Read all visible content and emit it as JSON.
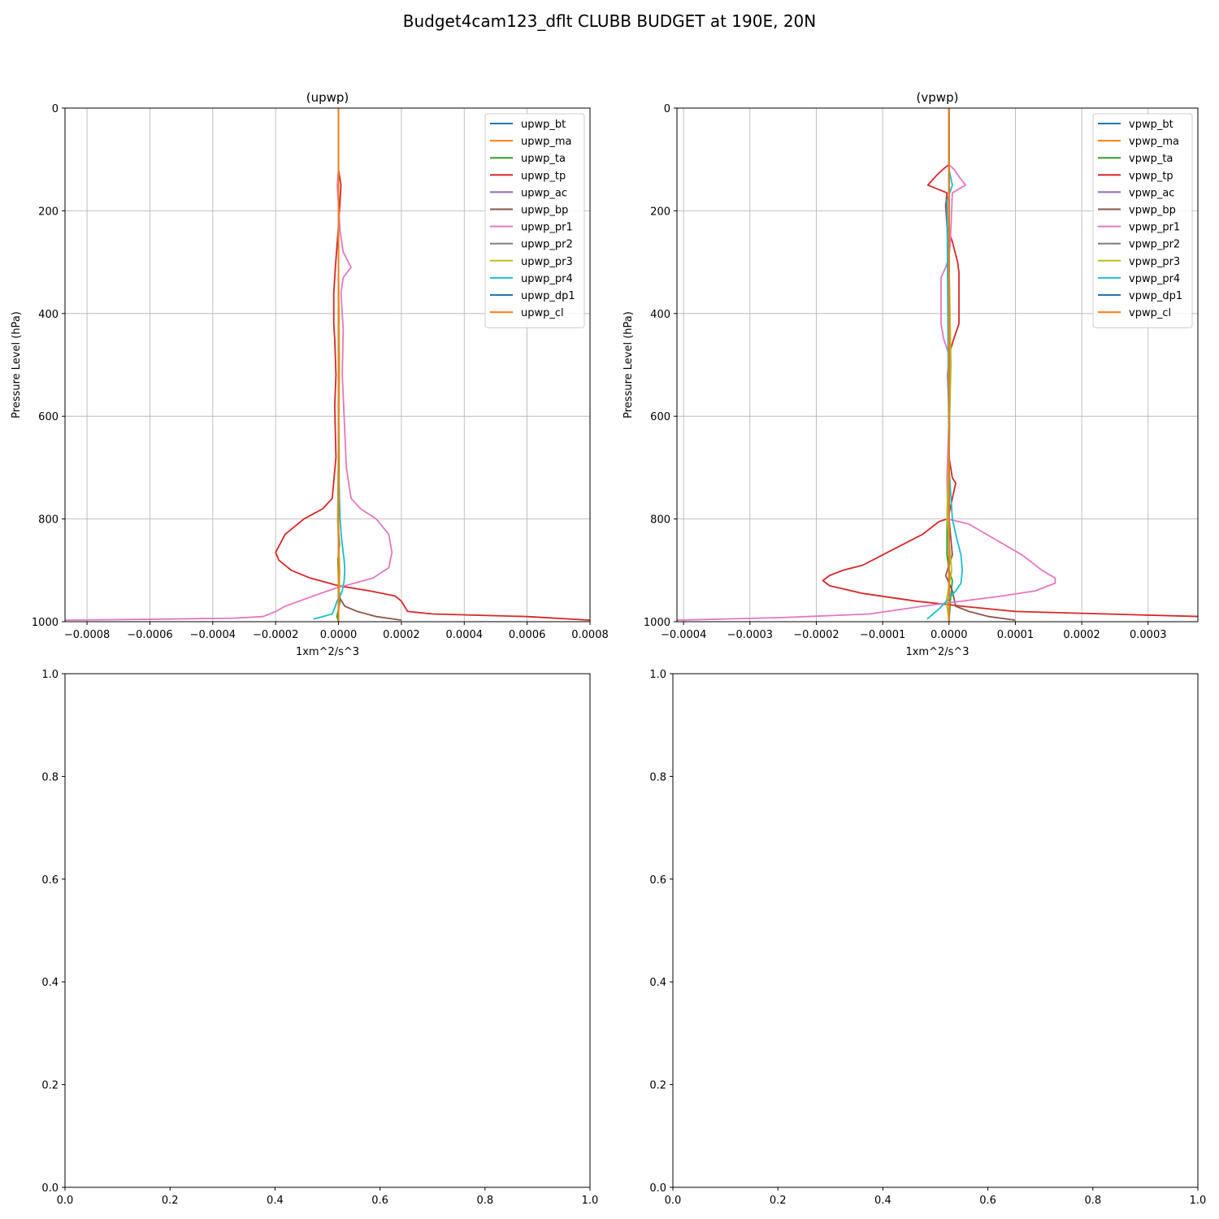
{
  "figure_title": "Budget4cam123_dflt CLUBB BUDGET at 190E, 20N",
  "colors": [
    "#1f77b4",
    "#ff7f0e",
    "#2ca02c",
    "#d62728",
    "#9467bd",
    "#8c564b",
    "#e377c2",
    "#7f7f7f",
    "#bcbd22",
    "#17becf",
    "#1f77b4",
    "#ff7f0e"
  ],
  "chart_data": [
    {
      "type": "line",
      "title": "(upwp)",
      "xlabel": "1xm^2/s^3",
      "ylabel": "Pressure Level (hPa)",
      "xlim": [
        -0.00087,
        0.0008
      ],
      "ylim": [
        1000,
        0
      ],
      "xticks": [
        -0.0008,
        -0.0006,
        -0.0004,
        -0.0002,
        0.0,
        0.0002,
        0.0004,
        0.0006,
        0.0008
      ],
      "xtick_labels": [
        "−0.0008",
        "−0.0006",
        "−0.0004",
        "−0.0002",
        "0.0000",
        "0.0002",
        "0.0004",
        "0.0006",
        "0.0008"
      ],
      "yticks": [
        0,
        200,
        400,
        600,
        800,
        1000
      ],
      "ytick_labels": [
        "0",
        "200",
        "400",
        "600",
        "800",
        "1000"
      ],
      "grid": true,
      "legend_position": "top-right",
      "series": [
        {
          "name": "upwp_bt",
          "x": [
            0,
            0,
            0,
            0
          ],
          "y": [
            0,
            500,
            900,
            1000
          ]
        },
        {
          "name": "upwp_ma",
          "x": [
            0,
            0,
            0,
            0
          ],
          "y": [
            0,
            500,
            900,
            1000
          ]
        },
        {
          "name": "upwp_ta",
          "x": [
            0,
            0,
            0,
            2e-06,
            -3e-06,
            3e-06,
            -2e-06,
            0,
            5e-06,
            -5e-06,
            0
          ],
          "y": [
            0,
            300,
            500,
            750,
            800,
            850,
            880,
            920,
            960,
            990,
            1000
          ]
        },
        {
          "name": "upwp_tp",
          "x": [
            0,
            0,
            8e-06,
            0,
            -5e-06,
            -1e-05,
            -1.5e-05,
            -1.5e-05,
            -1.2e-05,
            -8e-06,
            -1.2e-05,
            -8e-06,
            -2e-05,
            -5e-05,
            -0.00011,
            -0.00017,
            -0.0002,
            -0.00019,
            -0.00015,
            -9e-05,
            0,
            0.0001,
            0.00018,
            0.0002,
            0.00022,
            0.0003,
            0.0006,
            0.0008
          ],
          "y": [
            0,
            120,
            150,
            230,
            270,
            310,
            360,
            420,
            450,
            520,
            580,
            680,
            760,
            780,
            800,
            830,
            865,
            880,
            900,
            915,
            930,
            940,
            950,
            960,
            980,
            985,
            990,
            997
          ]
        },
        {
          "name": "upwp_ac",
          "x": [
            0,
            0,
            0
          ],
          "y": [
            0,
            500,
            1000
          ]
        },
        {
          "name": "upwp_bp",
          "x": [
            0,
            0,
            0,
            2e-06,
            0,
            2e-05,
            6e-05,
            0.00012,
            0.0002
          ],
          "y": [
            0,
            500,
            800,
            900,
            950,
            970,
            980,
            990,
            997
          ]
        },
        {
          "name": "upwp_pr1",
          "x": [
            0,
            0,
            -4e-06,
            5e-06,
            1.5e-05,
            4e-05,
            1.5e-05,
            8e-06,
            1.5e-05,
            1.2e-05,
            2.5e-05,
            4e-05,
            7e-05,
            0.00012,
            0.00016,
            0.00017,
            0.00016,
            0.00011,
            5e-05,
            -1e-05,
            -8e-05,
            -0.00017,
            -0.0002,
            -0.00024,
            -0.00033,
            -0.00055,
            -0.00087
          ],
          "y": [
            0,
            120,
            150,
            240,
            280,
            310,
            330,
            360,
            430,
            520,
            700,
            760,
            780,
            800,
            830,
            865,
            895,
            915,
            925,
            935,
            950,
            970,
            980,
            990,
            993,
            995,
            997
          ]
        },
        {
          "name": "upwp_pr2",
          "x": [
            0,
            0
          ],
          "y": [
            0,
            1000
          ]
        },
        {
          "name": "upwp_pr3",
          "x": [
            0,
            0,
            3e-06,
            -3e-06,
            4e-06,
            0
          ],
          "y": [
            0,
            300,
            500,
            800,
            900,
            1000
          ]
        },
        {
          "name": "upwp_pr4",
          "x": [
            0,
            0,
            5e-06,
            1e-05,
            1.8e-05,
            2e-05,
            1.8e-05,
            1.2e-05,
            5e-06,
            -5e-06,
            -1e-05,
            -2e-05,
            -5e-05,
            -8e-05
          ],
          "y": [
            0,
            700,
            800,
            840,
            880,
            900,
            920,
            940,
            950,
            960,
            970,
            985,
            990,
            995
          ]
        },
        {
          "name": "upwp_dp1",
          "x": [
            0,
            0
          ],
          "y": [
            0,
            1000
          ]
        },
        {
          "name": "upwp_cl",
          "x": [
            0,
            0
          ],
          "y": [
            0,
            1000
          ]
        }
      ]
    },
    {
      "type": "line",
      "title": "(vpwp)",
      "xlabel": "1xm^2/s^3",
      "ylabel": "Pressure Level (hPa)",
      "xlim": [
        -0.00041,
        0.000375
      ],
      "ylim": [
        1000,
        0
      ],
      "xticks": [
        -0.0004,
        -0.0003,
        -0.0002,
        -0.0001,
        0.0,
        0.0001,
        0.0002,
        0.0003
      ],
      "xtick_labels": [
        "−0.0004",
        "−0.0003",
        "−0.0002",
        "−0.0001",
        "0.0000",
        "0.0001",
        "0.0002",
        "0.0003"
      ],
      "yticks": [
        0,
        200,
        400,
        600,
        800,
        1000
      ],
      "ytick_labels": [
        "0",
        "200",
        "400",
        "600",
        "800",
        "1000"
      ],
      "grid": true,
      "legend_position": "top-right",
      "series": [
        {
          "name": "vpwp_bt",
          "x": [
            0,
            0,
            0,
            0
          ],
          "y": [
            0,
            500,
            900,
            1000
          ]
        },
        {
          "name": "vpwp_ma",
          "x": [
            0,
            0,
            0,
            0
          ],
          "y": [
            0,
            500,
            900,
            1000
          ]
        },
        {
          "name": "vpwp_ta",
          "x": [
            0,
            0,
            2e-06,
            0,
            -3e-06,
            -3e-06,
            0,
            5e-06,
            2e-06,
            0
          ],
          "y": [
            0,
            300,
            500,
            700,
            800,
            870,
            900,
            920,
            960,
            1000
          ]
        },
        {
          "name": "vpwp_tp",
          "x": [
            0,
            0,
            -8e-06,
            -1.8e-05,
            -3.2e-05,
            -3e-06,
            -5e-06,
            -3e-06,
            5e-06,
            1.3e-05,
            1.5e-05,
            1.5e-05,
            1.5e-05,
            7e-06,
            0,
            -2e-06,
            0,
            0,
            5e-06,
            1e-05,
            5e-06,
            0,
            -3e-06,
            -1.5e-05,
            -4e-05,
            -0.0001,
            -0.00013,
            -0.00016,
            -0.00018,
            -0.00019,
            -0.00018,
            -0.00013,
            -5e-05,
            2e-05,
            0.0001,
            0.00038
          ],
          "y": [
            0,
            110,
            118,
            130,
            150,
            165,
            190,
            230,
            260,
            300,
            320,
            360,
            420,
            450,
            480,
            520,
            600,
            680,
            720,
            730,
            760,
            790,
            800,
            805,
            830,
            870,
            890,
            900,
            910,
            920,
            930,
            945,
            960,
            970,
            980,
            990
          ]
        },
        {
          "name": "vpwp_ac",
          "x": [
            0,
            0,
            0
          ],
          "y": [
            0,
            500,
            1000
          ]
        },
        {
          "name": "vpwp_bp",
          "x": [
            0,
            0,
            5e-06,
            -5e-06,
            5e-06,
            1e-05,
            3e-05,
            6e-05,
            0.0001
          ],
          "y": [
            0,
            800,
            870,
            910,
            940,
            970,
            980,
            990,
            997
          ]
        },
        {
          "name": "vpwp_pr1",
          "x": [
            0,
            0,
            8e-06,
            1.3e-05,
            2.5e-05,
            5e-06,
            3e-06,
            2e-06,
            0,
            -5e-06,
            -1.2e-05,
            -1.2e-05,
            -1.2e-05,
            -8e-06,
            0,
            2e-06,
            0,
            -3e-06,
            -2e-06,
            3e-05,
            7e-05,
            0.00011,
            0.00014,
            0.00016,
            0.00016,
            0.00013,
            8e-05,
            2e-05,
            -4e-05,
            -0.00012,
            -0.00025,
            -0.00041
          ],
          "y": [
            0,
            110,
            120,
            130,
            150,
            165,
            230,
            260,
            290,
            310,
            330,
            390,
            420,
            450,
            480,
            520,
            600,
            720,
            800,
            810,
            840,
            870,
            900,
            915,
            925,
            940,
            950,
            960,
            970,
            985,
            992,
            997
          ]
        },
        {
          "name": "vpwp_pr2",
          "x": [
            0,
            0
          ],
          "y": [
            0,
            1000
          ]
        },
        {
          "name": "vpwp_pr3",
          "x": [
            0,
            0,
            3e-06,
            -3e-06,
            4e-06,
            -4e-06,
            0
          ],
          "y": [
            0,
            300,
            500,
            800,
            900,
            960,
            1000
          ]
        },
        {
          "name": "vpwp_pr4",
          "x": [
            0,
            0,
            5e-06,
            -3e-06,
            0,
            5e-06,
            1.2e-05,
            1.8e-05,
            2e-05,
            1.8e-05,
            1e-05,
            0,
            -1.5e-05,
            -3.3e-05
          ],
          "y": [
            0,
            120,
            150,
            180,
            700,
            800,
            840,
            870,
            900,
            925,
            940,
            955,
            975,
            995
          ]
        },
        {
          "name": "vpwp_dp1",
          "x": [
            0,
            0
          ],
          "y": [
            0,
            1000
          ]
        },
        {
          "name": "vpwp_cl",
          "x": [
            0,
            0
          ],
          "y": [
            0,
            1000
          ]
        }
      ]
    },
    {
      "type": "line",
      "title": "",
      "xlabel": "",
      "ylabel": "",
      "xlim": [
        0,
        1
      ],
      "ylim": [
        0,
        1
      ],
      "xticks": [
        0,
        0.2,
        0.4,
        0.6,
        0.8,
        1.0
      ],
      "xtick_labels": [
        "0.0",
        "0.2",
        "0.4",
        "0.6",
        "0.8",
        "1.0"
      ],
      "yticks": [
        0,
        0.2,
        0.4,
        0.6,
        0.8,
        1.0
      ],
      "ytick_labels": [
        "0.0",
        "0.2",
        "0.4",
        "0.6",
        "0.8",
        "1.0"
      ],
      "grid": false,
      "series": []
    },
    {
      "type": "line",
      "title": "",
      "xlabel": "",
      "ylabel": "",
      "xlim": [
        0,
        1
      ],
      "ylim": [
        0,
        1
      ],
      "xticks": [
        0,
        0.2,
        0.4,
        0.6,
        0.8,
        1.0
      ],
      "xtick_labels": [
        "0.0",
        "0.2",
        "0.4",
        "0.6",
        "0.8",
        "1.0"
      ],
      "yticks": [
        0,
        0.2,
        0.4,
        0.6,
        0.8,
        1.0
      ],
      "ytick_labels": [
        "0.0",
        "0.2",
        "0.4",
        "0.6",
        "0.8",
        "1.0"
      ],
      "grid": false,
      "series": []
    }
  ]
}
